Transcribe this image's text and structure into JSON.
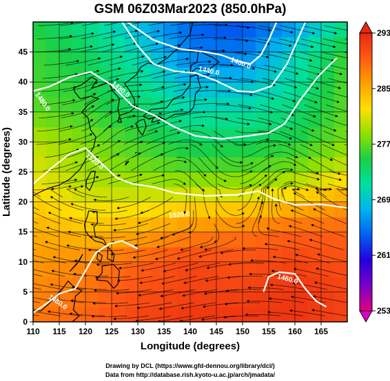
{
  "chart_data": {
    "type": "heatmap",
    "title": "GSM 06Z03Mar2023 (850.0hPa)",
    "xlabel": "Longitude (degrees)",
    "ylabel": "Latitude  (degrees)",
    "xlim": [
      110,
      170
    ],
    "ylim": [
      0,
      50
    ],
    "x_ticks": [
      "110",
      "115",
      "120",
      "125",
      "130",
      "135",
      "140",
      "145",
      "150",
      "155",
      "160",
      "165"
    ],
    "y_ticks": [
      "0",
      "5",
      "10",
      "15",
      "20",
      "25",
      "30",
      "35",
      "40",
      "45"
    ],
    "grid": true,
    "colorbar": {
      "range": [
        253,
        293
      ],
      "ticks": [
        "293",
        "285",
        "277",
        "269",
        "261",
        "253"
      ],
      "colors": [
        "#e0007f",
        "#7a00c8",
        "#2400e0",
        "#0060f0",
        "#00b4f0",
        "#00e0a0",
        "#18d048",
        "#90e000",
        "#ffe000",
        "#ffa000",
        "#ff5a14",
        "#e82810"
      ]
    },
    "field_grid": {
      "lats": [
        50,
        45,
        40,
        35,
        30,
        25,
        20,
        15,
        10,
        5,
        0
      ],
      "lons": [
        110,
        120,
        130,
        140,
        150,
        160,
        170
      ],
      "values": [
        [
          275,
          272,
          268,
          264,
          263,
          266,
          272
        ],
        [
          276,
          274,
          270,
          265,
          265,
          270,
          276
        ],
        [
          276,
          275,
          272,
          268,
          268,
          271,
          277
        ],
        [
          277,
          276,
          274,
          271,
          271,
          273,
          277
        ],
        [
          280,
          278,
          276,
          274,
          274,
          275,
          278
        ],
        [
          281,
          279,
          278,
          277,
          277,
          278,
          281
        ],
        [
          283,
          281,
          281,
          282,
          282,
          284,
          286
        ],
        [
          285,
          284,
          285,
          287,
          288,
          289,
          289
        ],
        [
          286,
          287,
          289,
          291,
          290,
          291,
          290
        ],
        [
          287,
          288,
          290,
          291,
          291,
          292,
          291
        ],
        [
          288,
          289,
          291,
          292,
          292,
          292,
          291
        ]
      ]
    },
    "contour_labels": [
      "1400.0",
      "1440.0",
      "1480.0",
      "1480.0",
      "1520.0",
      "1520.0",
      "1480.0",
      "1460.0"
    ],
    "credit_lines": [
      "Drawing by DCL (https://www.gfd-dennou.org/library/dcl/)",
      "Data from http://database.rish.kyoto-u.ac.jp/arch/jmadata/"
    ]
  }
}
